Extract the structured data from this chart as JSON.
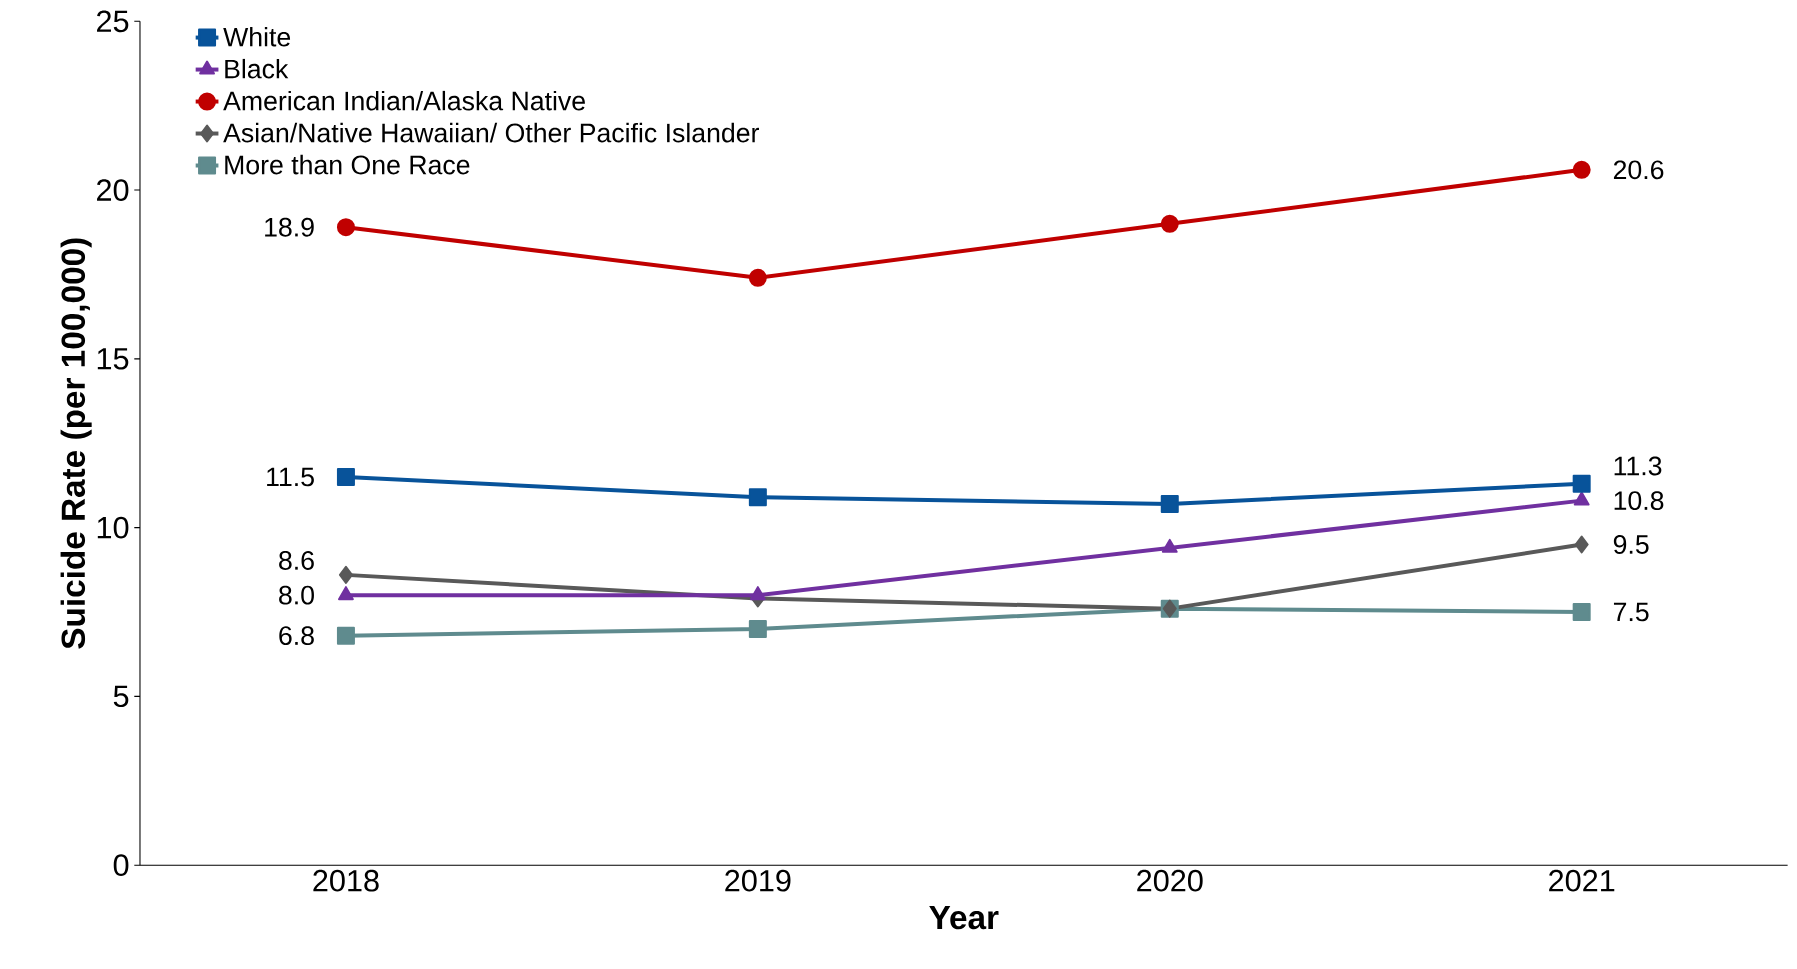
{
  "chart_data": {
    "type": "line",
    "xlabel": "Year",
    "ylabel": "Suicide Rate (per 100,000)",
    "categories": [
      "2018",
      "2019",
      "2020",
      "2021"
    ],
    "ylim": [
      0,
      25
    ],
    "yticks": [
      0,
      5,
      10,
      15,
      20,
      25
    ],
    "grid": false,
    "legend": "top left",
    "line_style": "solid",
    "series": [
      {
        "name": "White",
        "color": "#08539a",
        "marker": "square",
        "values": [
          11.5,
          10.9,
          10.7,
          11.3
        ],
        "value_labels": [
          "11.5",
          null,
          null,
          "11.3"
        ]
      },
      {
        "name": "Black",
        "color": "#7030a0",
        "marker": "triangle",
        "values": [
          8.0,
          8.0,
          9.4,
          10.8
        ],
        "value_labels": [
          "8.0",
          null,
          null,
          "10.8"
        ]
      },
      {
        "name": "American Indian/Alaska Native",
        "color": "#c00000",
        "marker": "circle",
        "values": [
          18.9,
          17.4,
          19.0,
          20.6
        ],
        "value_labels": [
          "18.9",
          null,
          null,
          "20.6"
        ]
      },
      {
        "name": "Asian/Native Hawaiian/ Other Pacific Islander",
        "color": "#595959",
        "marker": "diamond",
        "values": [
          8.6,
          7.9,
          7.6,
          9.5
        ],
        "value_labels": [
          "8.6",
          null,
          null,
          "9.5"
        ]
      },
      {
        "name": "More than One Race",
        "color": "#5f8b8e",
        "marker": "square",
        "values": [
          6.8,
          7.0,
          7.6,
          7.5
        ],
        "value_labels": [
          "6.8",
          null,
          null,
          "7.5"
        ]
      }
    ]
  }
}
